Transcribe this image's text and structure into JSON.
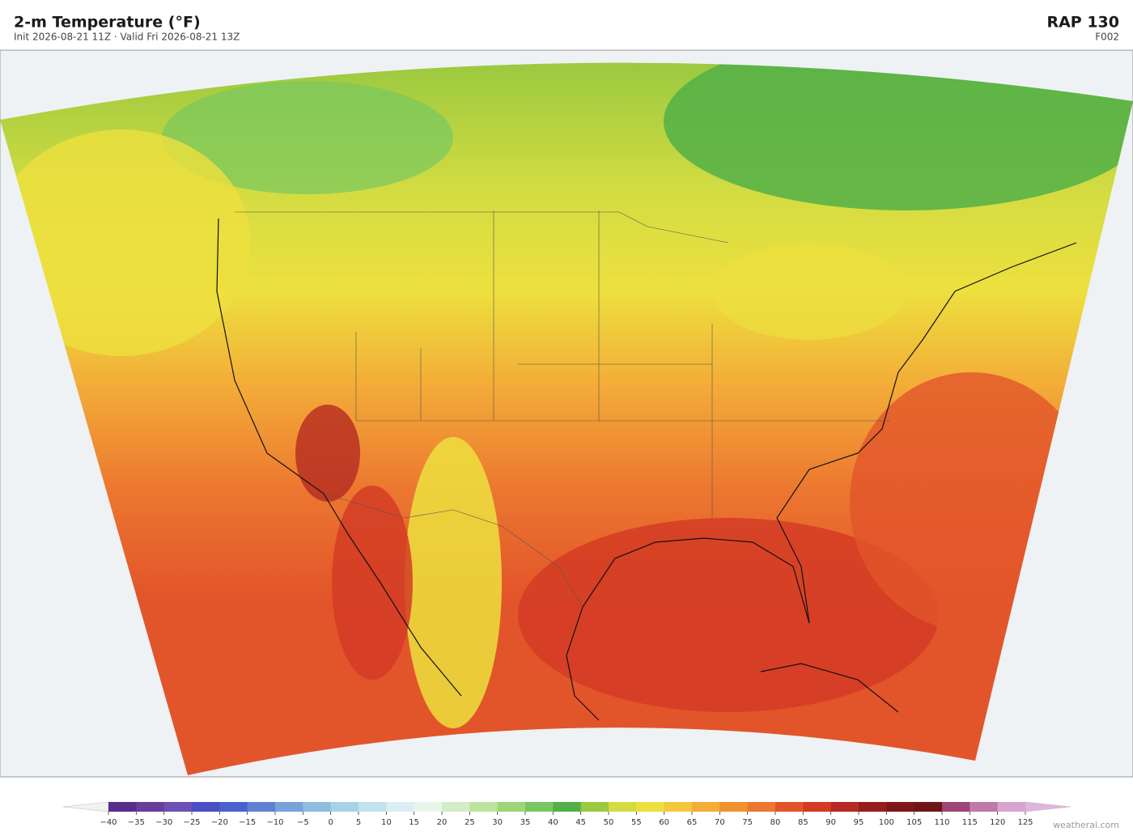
{
  "header": {
    "title": "2-m Temperature  (°F)",
    "subtitle": "Init 2026-08-21 11Z   ·   Valid Fri 2026-08-21 13Z",
    "model": "RAP  130",
    "forecast_hour": "F002"
  },
  "colorbar": {
    "ticks": [
      {
        "value": -40,
        "label": "−40"
      },
      {
        "value": -35,
        "label": "−35"
      },
      {
        "value": -30,
        "label": "−30"
      },
      {
        "value": -25,
        "label": "−25"
      },
      {
        "value": -20,
        "label": "−20"
      },
      {
        "value": -15,
        "label": "−15"
      },
      {
        "value": -10,
        "label": "−10"
      },
      {
        "value": -5,
        "label": "−5"
      },
      0,
      5,
      10,
      15,
      20,
      25,
      30,
      35,
      40,
      45,
      50,
      55,
      60,
      65,
      70,
      75,
      80,
      85,
      90,
      95,
      100,
      105,
      110,
      115,
      120,
      125
    ],
    "colors": [
      "#5a2d8c",
      "#6a3c9c",
      "#6e4fb4",
      "#4a4fc4",
      "#4a63cc",
      "#5f82d0",
      "#78a3d8",
      "#8fbde0",
      "#a8d2e8",
      "#c2e2ef",
      "#daeef3",
      "#e8f6ea",
      "#d3edc6",
      "#bde49e",
      "#9cd678",
      "#78c760",
      "#52b048",
      "#9bc940",
      "#d3dc42",
      "#ede03e",
      "#f5c83c",
      "#f3ad38",
      "#f0922f",
      "#ec7730",
      "#e2552a",
      "#d33c24",
      "#b52a22",
      "#951d1e",
      "#7e1719",
      "#6e1616",
      "#9e4476",
      "#c07aa8",
      "#d7a4cf"
    ],
    "under_color": "#f2f2f2",
    "over_color": "#e0b4dc"
  },
  "watermark": "weatherai.com"
}
